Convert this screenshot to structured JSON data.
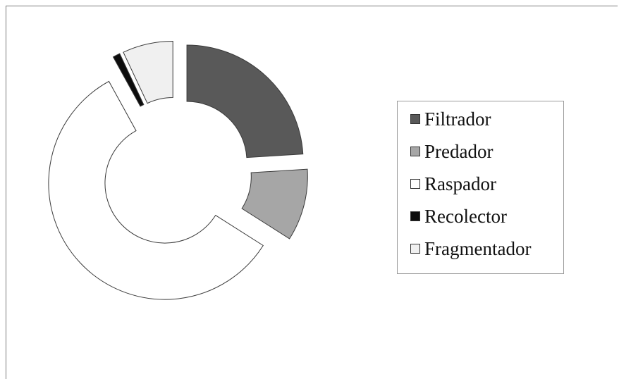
{
  "chart_data": {
    "type": "pie",
    "variant": "exploded doughnut",
    "title": "",
    "categories": [
      "Filtrador",
      "Predador",
      "Raspador",
      "Recolector",
      "Fragmentador"
    ],
    "values": [
      24,
      10,
      58,
      1,
      7
    ],
    "colors": [
      "#595959",
      "#a6a6a6",
      "#ffffff",
      "#0d0d0d",
      "#f0f0f0"
    ],
    "legend_position": "right"
  }
}
